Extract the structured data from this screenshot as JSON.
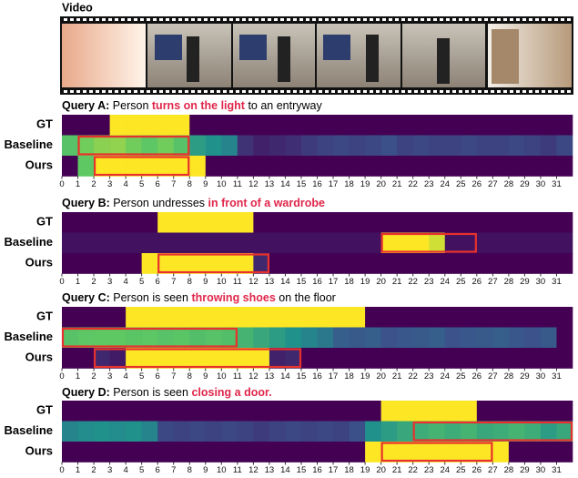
{
  "video_label": "Video",
  "colormap": "viridis",
  "xlim": [
    0,
    32
  ],
  "xticks": [
    0,
    1,
    2,
    3,
    4,
    5,
    6,
    7,
    8,
    9,
    10,
    11,
    12,
    13,
    14,
    15,
    16,
    17,
    18,
    19,
    20,
    21,
    22,
    23,
    24,
    25,
    26,
    27,
    28,
    29,
    30,
    31
  ],
  "queries": [
    {
      "title": [
        {
          "text": "Query A:",
          "style": "label"
        },
        {
          "text": " Person ",
          "style": "plain"
        },
        {
          "text": "turns on the light",
          "style": "highlight"
        },
        {
          "text": " to an entryway",
          "style": "plain"
        }
      ],
      "rows": [
        {
          "name": "GT",
          "values": [
            0,
            0,
            0,
            1,
            1,
            1,
            1,
            1,
            0,
            0,
            0,
            0,
            0,
            0,
            0,
            0,
            0,
            0,
            0,
            0,
            0,
            0,
            0,
            0,
            0,
            0,
            0,
            0,
            0,
            0,
            0,
            0
          ]
        },
        {
          "name": "Baseline",
          "values": [
            0.72,
            0.78,
            0.82,
            0.83,
            0.78,
            0.74,
            0.78,
            0.72,
            0.55,
            0.5,
            0.45,
            0.15,
            0.1,
            0.12,
            0.14,
            0.18,
            0.2,
            0.22,
            0.2,
            0.22,
            0.24,
            0.2,
            0.22,
            0.2,
            0.2,
            0.22,
            0.2,
            0.2,
            0.22,
            0.2,
            0.18,
            0.22
          ]
        },
        {
          "name": "Ours",
          "values": [
            0,
            0.75,
            1,
            1,
            1,
            1,
            1,
            1,
            1,
            0,
            0,
            0,
            0,
            0,
            0,
            0,
            0,
            0,
            0,
            0,
            0,
            0,
            0,
            0,
            0,
            0,
            0,
            0,
            0,
            0,
            0,
            0
          ]
        }
      ],
      "boxes": [
        {
          "row": 1,
          "range": [
            1,
            8
          ]
        },
        {
          "row": 2,
          "range": [
            2,
            8
          ]
        }
      ]
    },
    {
      "title": [
        {
          "text": "Query B:",
          "style": "label"
        },
        {
          "text": " Person undresses ",
          "style": "plain"
        },
        {
          "text": "in front of a wardrobe",
          "style": "highlight"
        }
      ],
      "rows": [
        {
          "name": "GT",
          "values": [
            0,
            0,
            0,
            0,
            0,
            0,
            1,
            1,
            1,
            1,
            1,
            1,
            0,
            0,
            0,
            0,
            0,
            0,
            0,
            0,
            0,
            0,
            0,
            0,
            0,
            0,
            0,
            0,
            0,
            0,
            0,
            0
          ]
        },
        {
          "name": "Baseline",
          "values": [
            0.05,
            0.05,
            0.05,
            0.05,
            0.05,
            0.05,
            0.05,
            0.05,
            0.05,
            0.05,
            0.05,
            0.05,
            0.05,
            0.05,
            0.05,
            0.05,
            0.05,
            0.05,
            0.05,
            0.05,
            1,
            1,
            1,
            0.93,
            0.05,
            0.05,
            0.05,
            0.05,
            0.05,
            0.05,
            0.05,
            0.05
          ]
        },
        {
          "name": "Ours",
          "values": [
            0,
            0,
            0,
            0,
            0,
            1,
            1,
            1,
            1,
            1,
            1,
            1,
            0.12,
            0,
            0,
            0,
            0,
            0,
            0,
            0,
            0,
            0,
            0,
            0,
            0,
            0,
            0,
            0,
            0,
            0,
            0,
            0
          ]
        }
      ],
      "boxes": [
        {
          "row": 1,
          "range": [
            20,
            26
          ]
        },
        {
          "row": 2,
          "range": [
            6,
            13
          ]
        }
      ]
    },
    {
      "title": [
        {
          "text": "Query C:",
          "style": "label"
        },
        {
          "text": " Person is seen ",
          "style": "plain"
        },
        {
          "text": "throwing shoes",
          "style": "highlight"
        },
        {
          "text": " on the floor",
          "style": "plain"
        }
      ],
      "rows": [
        {
          "name": "GT",
          "values": [
            0,
            0,
            0,
            0,
            1,
            1,
            1,
            1,
            1,
            1,
            1,
            1,
            1,
            1,
            1,
            1,
            1,
            1,
            1,
            0,
            0,
            0,
            0,
            0,
            0,
            0,
            0,
            0,
            0,
            0,
            0,
            0
          ]
        },
        {
          "name": "Baseline",
          "values": [
            0.72,
            0.74,
            0.75,
            0.75,
            0.73,
            0.74,
            0.72,
            0.73,
            0.7,
            0.72,
            0.7,
            0.65,
            0.6,
            0.55,
            0.5,
            0.45,
            0.4,
            0.3,
            0.28,
            0.3,
            0.25,
            0.27,
            0.28,
            0.3,
            0.25,
            0.27,
            0.28,
            0.3,
            0.27,
            0.25,
            0.28,
            0
          ]
        },
        {
          "name": "Ours",
          "values": [
            0,
            0,
            0.12,
            0.08,
            1,
            1,
            1,
            1,
            1,
            1,
            1,
            1,
            1,
            0.1,
            0.12,
            0,
            0,
            0,
            0,
            0,
            0,
            0,
            0,
            0,
            0,
            0,
            0,
            0,
            0,
            0,
            0,
            0
          ]
        }
      ],
      "boxes": [
        {
          "row": 1,
          "range": [
            0,
            11
          ]
        },
        {
          "row": 2,
          "range": [
            2,
            15
          ]
        }
      ]
    },
    {
      "title": [
        {
          "text": "Query D:",
          "style": "label"
        },
        {
          "text": " Person is seen ",
          "style": "plain"
        },
        {
          "text": "closing a door.",
          "style": "highlight"
        }
      ],
      "rows": [
        {
          "name": "GT",
          "values": [
            0,
            0,
            0,
            0,
            0,
            0,
            0,
            0,
            0,
            0,
            0,
            0,
            0,
            0,
            0,
            0,
            0,
            0,
            0,
            0,
            1,
            1,
            1,
            1,
            1,
            1,
            0,
            0,
            0,
            0,
            0,
            0
          ]
        },
        {
          "name": "Baseline",
          "values": [
            0.45,
            0.48,
            0.5,
            0.48,
            0.5,
            0.45,
            0.22,
            0.2,
            0.22,
            0.2,
            0.22,
            0.2,
            0.18,
            0.2,
            0.22,
            0.2,
            0.22,
            0.2,
            0.24,
            0.5,
            0.55,
            0.6,
            0.62,
            0.65,
            0.62,
            0.65,
            0.6,
            0.62,
            0.65,
            0.62,
            0.55,
            0.6
          ]
        },
        {
          "name": "Ours",
          "values": [
            0,
            0,
            0,
            0,
            0,
            0,
            0,
            0,
            0,
            0,
            0,
            0,
            0,
            0,
            0,
            0,
            0,
            0,
            0,
            1,
            1,
            1,
            1,
            1,
            1,
            1,
            1,
            1,
            0,
            0,
            0,
            0
          ]
        }
      ],
      "boxes": [
        {
          "row": 1,
          "range": [
            22,
            32
          ]
        },
        {
          "row": 2,
          "range": [
            20,
            27
          ]
        }
      ]
    }
  ]
}
